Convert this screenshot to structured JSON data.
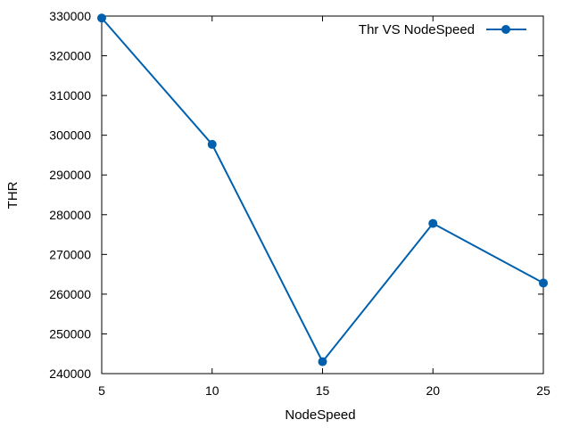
{
  "chart_data": {
    "type": "line",
    "title": "",
    "xlabel": "NodeSpeed",
    "ylabel": "THR",
    "xlim": [
      5,
      25
    ],
    "ylim": [
      240000,
      330000
    ],
    "x_ticks": [
      "5",
      "10",
      "15",
      "20",
      "25"
    ],
    "y_ticks": [
      "240000",
      "250000",
      "260000",
      "270000",
      "280000",
      "290000",
      "300000",
      "310000",
      "320000",
      "330000"
    ],
    "grid": false,
    "legend_position": "top-right",
    "series": [
      {
        "name": "Thr VS NodeSpeed",
        "color": "#0060ad",
        "x": [
          5,
          10,
          15,
          20,
          25
        ],
        "y": [
          329500,
          297700,
          243000,
          277800,
          262800
        ]
      }
    ]
  }
}
